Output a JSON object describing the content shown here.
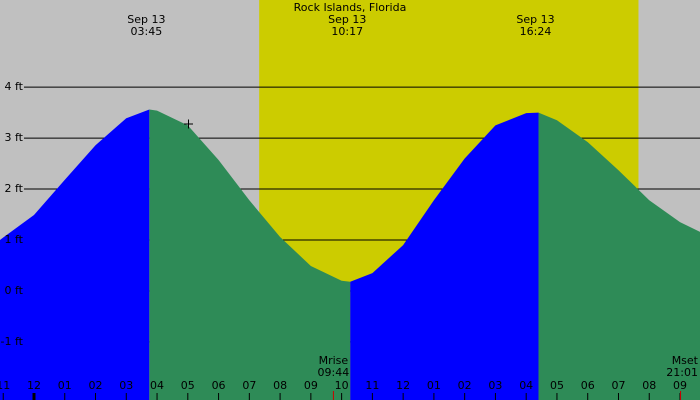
{
  "chart_data": {
    "type": "tide",
    "title": "Rock Islands, Florida",
    "background_color": "#c0c0c0",
    "daylight_color": "#cccc00",
    "rising_color": "#0000ff",
    "falling_color": "#2e8b57",
    "daylight": [
      7.32,
      19.65
    ],
    "xlim": [
      -1.105,
      21.65
    ],
    "ylim": [
      -2.14,
      5.71
    ],
    "yticks": [
      {
        "value": 4,
        "label": "4 ft"
      },
      {
        "value": 3,
        "label": "3 ft"
      },
      {
        "value": 2,
        "label": "2 ft"
      },
      {
        "value": 1,
        "label": "1 ft"
      },
      {
        "value": 0,
        "label": "0 ft"
      },
      {
        "value": -1,
        "label": "-1 ft"
      }
    ],
    "xticks": [
      {
        "value": -1,
        "label": "11"
      },
      {
        "value": 0,
        "label": "12"
      },
      {
        "value": 1,
        "label": "01"
      },
      {
        "value": 2,
        "label": "02"
      },
      {
        "value": 3,
        "label": "03"
      },
      {
        "value": 4,
        "label": "04"
      },
      {
        "value": 5,
        "label": "05"
      },
      {
        "value": 6,
        "label": "06"
      },
      {
        "value": 7,
        "label": "07"
      },
      {
        "value": 8,
        "label": "08"
      },
      {
        "value": 9,
        "label": "09"
      },
      {
        "value": 10,
        "label": "10"
      },
      {
        "value": 11,
        "label": "11"
      },
      {
        "value": 12,
        "label": "12"
      },
      {
        "value": 13,
        "label": "01"
      },
      {
        "value": 14,
        "label": "02"
      },
      {
        "value": 15,
        "label": "03"
      },
      {
        "value": 16,
        "label": "04"
      },
      {
        "value": 17,
        "label": "05"
      },
      {
        "value": 18,
        "label": "06"
      },
      {
        "value": 19,
        "label": "07"
      },
      {
        "value": 20,
        "label": "08"
      },
      {
        "value": 21,
        "label": "09"
      }
    ],
    "x": [
      -1.105,
      -1,
      0,
      1,
      2,
      3,
      3.75,
      4,
      5,
      6,
      7,
      8,
      9,
      10,
      10.28,
      11,
      12,
      13,
      14,
      15,
      16,
      16.4,
      17,
      18,
      19,
      20,
      21,
      21.65
    ],
    "values": [
      1.0,
      1.05,
      1.49,
      2.18,
      2.86,
      3.39,
      3.56,
      3.54,
      3.25,
      2.57,
      1.78,
      1.06,
      0.49,
      0.2,
      0.18,
      0.35,
      0.9,
      1.78,
      2.6,
      3.25,
      3.49,
      3.5,
      3.35,
      2.92,
      2.37,
      1.78,
      1.35,
      1.16
    ],
    "extremes": [
      {
        "date": "Sep 13",
        "time": "03:45",
        "x": 3.75
      },
      {
        "date": "Sep 13",
        "time": "10:17",
        "x": 10.28
      },
      {
        "date": "Sep 13",
        "time": "16:24",
        "x": 16.4
      }
    ],
    "moon": [
      {
        "event": "Mrise",
        "time": "09:44",
        "x": 9.733
      },
      {
        "event": "Mset",
        "time": "21:01",
        "x": 21.017
      }
    ]
  }
}
